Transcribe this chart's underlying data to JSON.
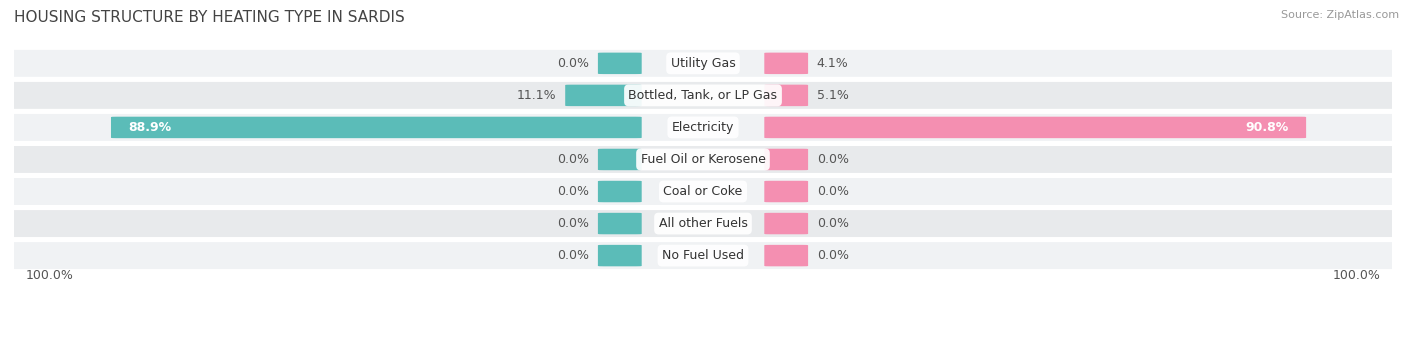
{
  "title": "HOUSING STRUCTURE BY HEATING TYPE IN SARDIS",
  "source": "Source: ZipAtlas.com",
  "categories": [
    "Utility Gas",
    "Bottled, Tank, or LP Gas",
    "Electricity",
    "Fuel Oil or Kerosene",
    "Coal or Coke",
    "All other Fuels",
    "No Fuel Used"
  ],
  "owner_values": [
    0.0,
    11.1,
    88.9,
    0.0,
    0.0,
    0.0,
    0.0
  ],
  "renter_values": [
    4.1,
    5.1,
    90.8,
    0.0,
    0.0,
    0.0,
    0.0
  ],
  "owner_color": "#5bbcb8",
  "renter_color": "#f48fb1",
  "row_bg_colors": [
    "#f0f2f4",
    "#e8eaec"
  ],
  "title_color": "#444444",
  "label_color": "#555555",
  "max_value": 100.0,
  "min_bar_width": 0.055,
  "label_fontsize": 9.0,
  "title_fontsize": 11.0,
  "legend_fontsize": 9.5,
  "bar_height": 0.65
}
